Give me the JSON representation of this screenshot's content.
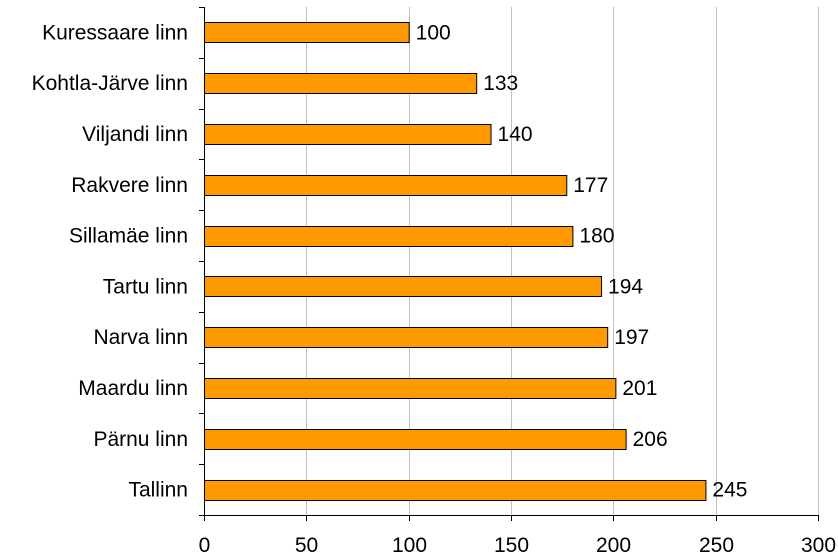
{
  "chart_data": {
    "type": "bar",
    "orientation": "horizontal",
    "categories": [
      "Kuressaare linn",
      "Kohtla-Järve linn",
      "Viljandi linn",
      "Rakvere linn",
      "Sillamäe linn",
      "Tartu linn",
      "Narva linn",
      "Maardu linn",
      "Pärnu linn",
      "Tallinn"
    ],
    "values": [
      100,
      133,
      140,
      177,
      180,
      194,
      197,
      201,
      206,
      245
    ],
    "xlim": [
      0,
      300
    ],
    "xticks": [
      0,
      50,
      100,
      150,
      200,
      250,
      300
    ],
    "grid": true,
    "data_labels": true,
    "bar_color": "#FF9900",
    "bar_edge_color": "#000000",
    "grid_color": "#C0C0C0"
  }
}
